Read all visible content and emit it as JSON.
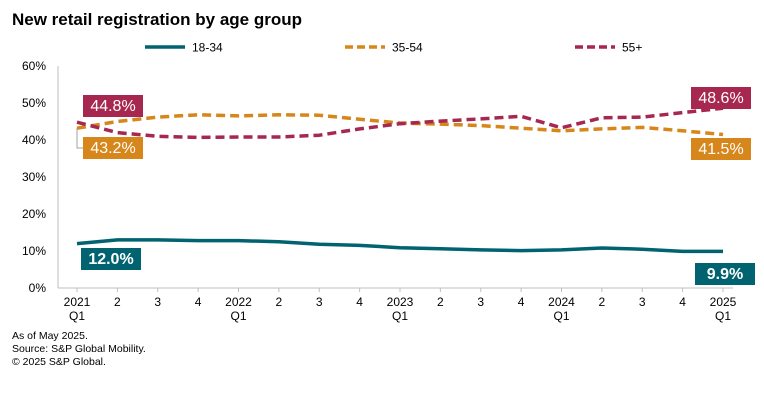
{
  "title": "New retail registration by age group",
  "notes": [
    "As of May 2025.",
    "Source: S&P Global Mobility.",
    "© 2025 S&P Global."
  ],
  "chart_data": {
    "type": "line",
    "title": "New retail registration by age group",
    "xlabel": "",
    "ylabel": "",
    "ylim": [
      0,
      60
    ],
    "y_ticks": [
      "0%",
      "10%",
      "20%",
      "30%",
      "40%",
      "50%",
      "60%"
    ],
    "grid": false,
    "legend": "top",
    "categories": [
      "2021 Q1",
      "2",
      "3",
      "4",
      "2022 Q1",
      "2",
      "3",
      "4",
      "2023 Q1",
      "2",
      "3",
      "4",
      "2024 Q1",
      "2",
      "3",
      "4",
      "2025 Q1"
    ],
    "x_tick_labels": [
      [
        "2021",
        "Q1"
      ],
      [
        "2"
      ],
      [
        "3"
      ],
      [
        "4"
      ],
      [
        "2022",
        "Q1"
      ],
      [
        "2"
      ],
      [
        "3"
      ],
      [
        "4"
      ],
      [
        "2023",
        "Q1"
      ],
      [
        "2"
      ],
      [
        "3"
      ],
      [
        "4"
      ],
      [
        "2024",
        "Q1"
      ],
      [
        "2"
      ],
      [
        "3"
      ],
      [
        "4"
      ],
      [
        "2025",
        "Q1"
      ]
    ],
    "series": [
      {
        "name": "18-34",
        "color": "#00636f",
        "dash": "solid",
        "values": [
          12.0,
          13.0,
          13.0,
          12.8,
          12.8,
          12.5,
          11.8,
          11.5,
          10.9,
          10.6,
          10.3,
          10.1,
          10.3,
          10.8,
          10.5,
          9.9,
          9.9
        ],
        "labels": [
          {
            "index": 0,
            "text": "12.0%"
          },
          {
            "index": 16,
            "text": "9.9%"
          }
        ]
      },
      {
        "name": "35-54",
        "color": "#d6861a",
        "dash": "dashed",
        "values": [
          43.2,
          45.0,
          46.2,
          46.8,
          46.5,
          46.8,
          46.7,
          45.6,
          44.6,
          44.3,
          43.9,
          43.2,
          42.5,
          43.0,
          43.4,
          42.5,
          41.5
        ],
        "labels": [
          {
            "index": 0,
            "text": "43.2%"
          },
          {
            "index": 16,
            "text": "41.5%"
          }
        ]
      },
      {
        "name": "55+",
        "color": "#a6274f",
        "dash": "dashed",
        "values": [
          44.8,
          42.0,
          41.0,
          40.7,
          40.8,
          40.8,
          41.3,
          43.0,
          44.4,
          45.1,
          45.7,
          46.4,
          43.3,
          46.0,
          46.2,
          47.4,
          48.6
        ],
        "labels": [
          {
            "index": 0,
            "text": "44.8%"
          },
          {
            "index": 16,
            "text": "48.6%"
          }
        ]
      }
    ]
  }
}
